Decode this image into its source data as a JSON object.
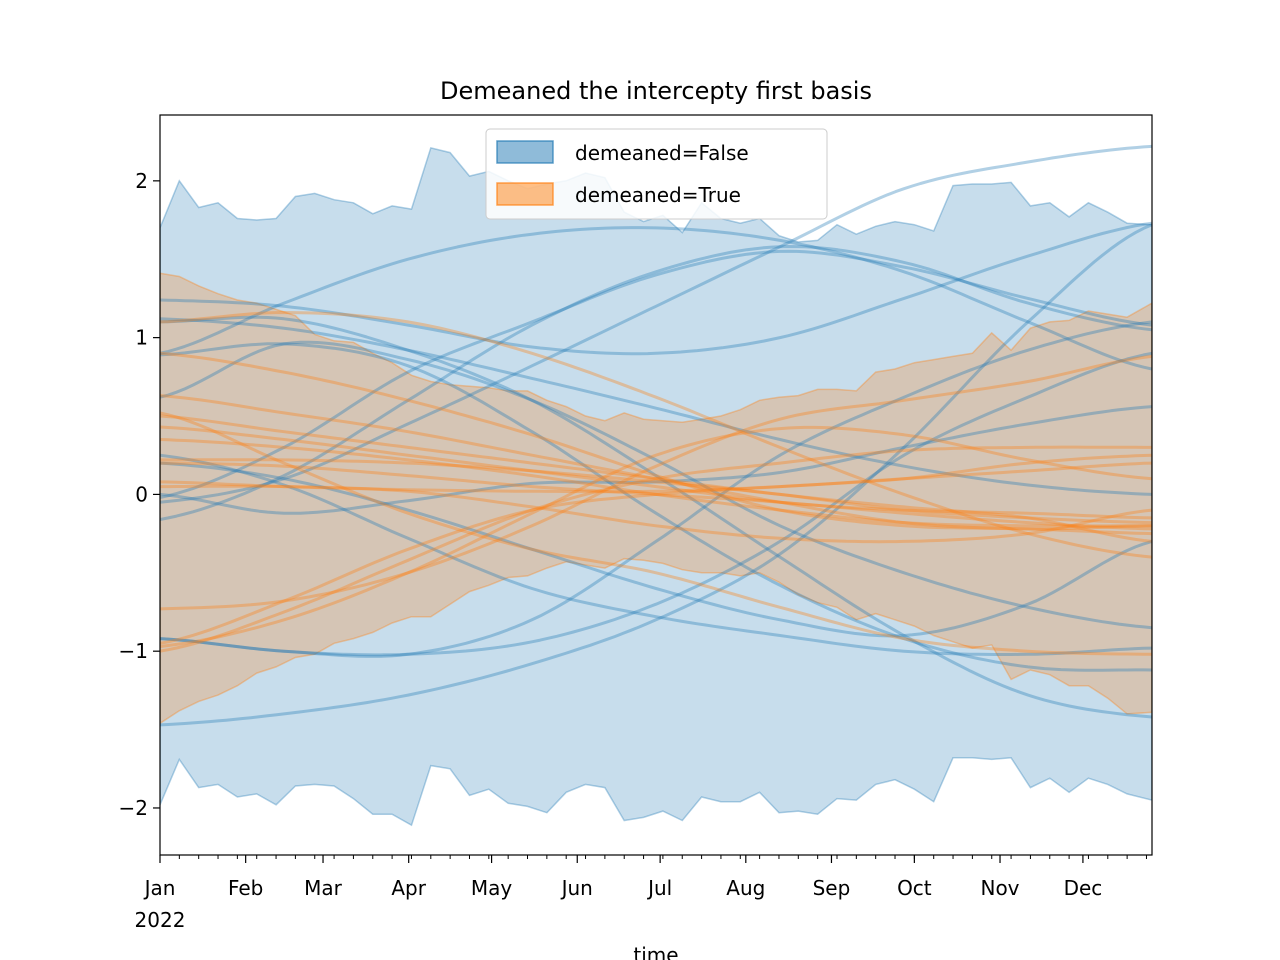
{
  "chart_data": {
    "type": "area",
    "title": "Demeaned the intercepty first basis",
    "xlabel": "time",
    "ylabel": "",
    "x_start": "2022-01-01",
    "x_end": "2022-12-26",
    "xlim": [
      "2022-01-01",
      "2022-12-26"
    ],
    "ylim": [
      -2.3,
      2.42
    ],
    "x_ticks": [
      {
        "date": "2022-01-01",
        "label": "Jan",
        "sublabel": "2022"
      },
      {
        "date": "2022-02-01",
        "label": "Feb"
      },
      {
        "date": "2022-03-01",
        "label": "Mar"
      },
      {
        "date": "2022-04-01",
        "label": "Apr"
      },
      {
        "date": "2022-05-01",
        "label": "May"
      },
      {
        "date": "2022-06-01",
        "label": "Jun"
      },
      {
        "date": "2022-07-01",
        "label": "Jul"
      },
      {
        "date": "2022-08-01",
        "label": "Aug"
      },
      {
        "date": "2022-09-01",
        "label": "Sep"
      },
      {
        "date": "2022-10-01",
        "label": "Oct"
      },
      {
        "date": "2022-11-01",
        "label": "Nov"
      },
      {
        "date": "2022-12-01",
        "label": "Dec"
      }
    ],
    "y_ticks": [
      {
        "value": 2,
        "label": "2"
      },
      {
        "value": 1,
        "label": "1"
      },
      {
        "value": 0,
        "label": "0"
      },
      {
        "value": -1,
        "label": "−1"
      },
      {
        "value": -2,
        "label": "−2"
      }
    ],
    "grid": false,
    "legend_position": "upper-center",
    "colors": {
      "false": "#1f77b4",
      "true": "#ff7f0e"
    },
    "series": [
      {
        "name": "demeaned=False",
        "color": "#1f77b4",
        "band_x": [
          "2022-01-01",
          "2022-01-08",
          "2022-01-15",
          "2022-01-22",
          "2022-01-29",
          "2022-02-05",
          "2022-02-12",
          "2022-02-19",
          "2022-02-26",
          "2022-03-05",
          "2022-03-12",
          "2022-03-19",
          "2022-03-26",
          "2022-04-02",
          "2022-04-09",
          "2022-04-16",
          "2022-04-23",
          "2022-04-30",
          "2022-05-07",
          "2022-05-14",
          "2022-05-21",
          "2022-05-28",
          "2022-06-04",
          "2022-06-11",
          "2022-06-18",
          "2022-06-25",
          "2022-07-02",
          "2022-07-09",
          "2022-07-16",
          "2022-07-23",
          "2022-07-30",
          "2022-08-06",
          "2022-08-13",
          "2022-08-20",
          "2022-08-27",
          "2022-09-03",
          "2022-09-10",
          "2022-09-17",
          "2022-09-24",
          "2022-10-01",
          "2022-10-08",
          "2022-10-15",
          "2022-10-22",
          "2022-10-29",
          "2022-11-05",
          "2022-11-12",
          "2022-11-19",
          "2022-11-26",
          "2022-12-03",
          "2022-12-10",
          "2022-12-17",
          "2022-12-26"
        ],
        "band_upper": [
          1.7,
          2.0,
          1.83,
          1.86,
          1.76,
          1.75,
          1.76,
          1.9,
          1.92,
          1.88,
          1.86,
          1.79,
          1.84,
          1.82,
          2.21,
          2.18,
          2.03,
          2.06,
          2.0,
          1.95,
          1.98,
          2.0,
          2.05,
          2.02,
          1.8,
          1.74,
          1.78,
          1.67,
          1.86,
          1.76,
          1.73,
          1.76,
          1.65,
          1.61,
          1.62,
          1.72,
          1.66,
          1.71,
          1.74,
          1.72,
          1.68,
          1.97,
          1.98,
          1.98,
          1.99,
          1.84,
          1.86,
          1.77,
          1.86,
          1.8,
          1.73,
          1.72
        ],
        "band_lower": [
          -1.98,
          -1.69,
          -1.87,
          -1.85,
          -1.93,
          -1.91,
          -1.98,
          -1.86,
          -1.85,
          -1.86,
          -1.94,
          -2.04,
          -2.04,
          -2.11,
          -1.73,
          -1.75,
          -1.92,
          -1.88,
          -1.97,
          -1.99,
          -2.03,
          -1.9,
          -1.85,
          -1.87,
          -2.08,
          -2.06,
          -2.02,
          -2.08,
          -1.93,
          -1.96,
          -1.96,
          -1.9,
          -2.03,
          -2.02,
          -2.04,
          -1.94,
          -1.95,
          -1.85,
          -1.82,
          -1.88,
          -1.96,
          -1.68,
          -1.68,
          -1.69,
          -1.68,
          -1.87,
          -1.81,
          -1.9,
          -1.81,
          -1.85,
          -1.91,
          -1.95
        ],
        "lines": [
          [
            0.9,
            1.22,
            1.5,
            1.66,
            1.7,
            1.62,
            1.42,
            1.1,
            0.8
          ],
          [
            1.24,
            1.2,
            1.08,
            0.94,
            0.9,
            1.0,
            1.25,
            1.52,
            1.73
          ],
          [
            1.12,
            1.06,
            0.92,
            0.74,
            0.55,
            0.35,
            0.18,
            0.06,
            0.0
          ],
          [
            0.89,
            0.96,
            0.82,
            0.4,
            -0.12,
            -0.58,
            -0.92,
            -1.1,
            -1.12
          ],
          [
            -0.16,
            0.12,
            0.6,
            1.08,
            1.42,
            1.58,
            1.48,
            1.22,
            1.05
          ],
          [
            -0.02,
            0.3,
            0.78,
            1.1,
            1.4,
            1.55,
            1.45,
            1.25,
            1.08
          ],
          [
            0.25,
            0.06,
            -0.28,
            -0.6,
            -0.78,
            -0.9,
            -1.0,
            -1.02,
            -0.98
          ],
          [
            -0.92,
            -1.0,
            -1.02,
            -0.94,
            -0.7,
            -0.3,
            0.25,
            0.62,
            0.9
          ],
          [
            -1.47,
            -1.4,
            -1.28,
            -1.08,
            -0.8,
            -0.38,
            0.3,
            1.1,
            1.72
          ],
          [
            0.0,
            -0.12,
            -0.04,
            0.07,
            0.08,
            0.14,
            0.3,
            0.45,
            0.56
          ],
          [
            -0.92,
            -1.0,
            -1.02,
            -0.8,
            -0.3,
            0.25,
            0.62,
            0.92,
            1.1
          ],
          [
            0.62,
            0.96,
            0.86,
            0.6,
            0.22,
            -0.2,
            -0.5,
            -0.72,
            -0.85
          ],
          [
            1.1,
            1.12,
            0.92,
            0.6,
            0.12,
            -0.4,
            -0.9,
            -1.28,
            -1.42
          ],
          [
            -0.05,
            0.1,
            0.45,
            0.82,
            1.2,
            1.58,
            1.95,
            2.12,
            2.22
          ],
          [
            0.2,
            0.1,
            -0.1,
            -0.35,
            -0.6,
            -0.8,
            -0.9,
            -0.7,
            -0.3
          ]
        ]
      },
      {
        "name": "demeaned=True",
        "color": "#ff7f0e",
        "band_x": [
          "2022-01-01",
          "2022-01-08",
          "2022-01-15",
          "2022-01-22",
          "2022-01-29",
          "2022-02-05",
          "2022-02-12",
          "2022-02-19",
          "2022-02-26",
          "2022-03-05",
          "2022-03-12",
          "2022-03-19",
          "2022-03-26",
          "2022-04-02",
          "2022-04-09",
          "2022-04-16",
          "2022-04-23",
          "2022-04-30",
          "2022-05-07",
          "2022-05-14",
          "2022-05-21",
          "2022-05-28",
          "2022-06-04",
          "2022-06-11",
          "2022-06-18",
          "2022-06-25",
          "2022-07-02",
          "2022-07-09",
          "2022-07-16",
          "2022-07-23",
          "2022-07-30",
          "2022-08-06",
          "2022-08-13",
          "2022-08-20",
          "2022-08-27",
          "2022-09-03",
          "2022-09-10",
          "2022-09-17",
          "2022-09-24",
          "2022-10-01",
          "2022-10-08",
          "2022-10-15",
          "2022-10-22",
          "2022-10-29",
          "2022-11-05",
          "2022-11-12",
          "2022-11-19",
          "2022-11-26",
          "2022-12-03",
          "2022-12-10",
          "2022-12-17",
          "2022-12-26"
        ],
        "band_upper": [
          1.41,
          1.39,
          1.33,
          1.28,
          1.24,
          1.22,
          1.18,
          1.14,
          1.02,
          0.98,
          0.97,
          0.9,
          0.84,
          0.76,
          0.72,
          0.7,
          0.69,
          0.68,
          0.66,
          0.66,
          0.6,
          0.56,
          0.5,
          0.47,
          0.52,
          0.48,
          0.47,
          0.46,
          0.48,
          0.5,
          0.54,
          0.6,
          0.62,
          0.63,
          0.67,
          0.67,
          0.66,
          0.78,
          0.8,
          0.84,
          0.86,
          0.88,
          0.9,
          1.03,
          0.92,
          1.06,
          1.1,
          1.11,
          1.17,
          1.15,
          1.13,
          1.22
        ],
        "band_lower": [
          -1.46,
          -1.38,
          -1.32,
          -1.28,
          -1.22,
          -1.14,
          -1.1,
          -1.04,
          -1.02,
          -0.95,
          -0.92,
          -0.88,
          -0.82,
          -0.78,
          -0.78,
          -0.7,
          -0.62,
          -0.58,
          -0.53,
          -0.52,
          -0.47,
          -0.43,
          -0.45,
          -0.47,
          -0.41,
          -0.42,
          -0.44,
          -0.48,
          -0.5,
          -0.5,
          -0.52,
          -0.5,
          -0.56,
          -0.64,
          -0.69,
          -0.72,
          -0.8,
          -0.76,
          -0.8,
          -0.84,
          -0.9,
          -0.94,
          -0.98,
          -0.96,
          -1.18,
          -1.12,
          -1.15,
          -1.22,
          -1.22,
          -1.3,
          -1.4,
          -1.39
        ],
        "lines": [
          [
            1.1,
            1.16,
            1.1,
            0.9,
            0.62,
            0.3,
            0.0,
            -0.25,
            -0.4
          ],
          [
            0.9,
            0.78,
            0.6,
            0.38,
            0.12,
            -0.1,
            -0.2,
            -0.22,
            -0.25
          ],
          [
            0.63,
            0.52,
            0.4,
            0.25,
            0.1,
            -0.05,
            -0.18,
            -0.22,
            -0.2
          ],
          [
            0.5,
            0.4,
            0.3,
            0.2,
            0.1,
            0.0,
            -0.08,
            -0.15,
            -0.3
          ],
          [
            0.43,
            0.35,
            0.25,
            0.15,
            0.05,
            -0.05,
            -0.1,
            -0.12,
            -0.15
          ],
          [
            0.35,
            0.3,
            0.22,
            0.12,
            0.0,
            -0.1,
            -0.18,
            -0.2,
            -0.2
          ],
          [
            0.22,
            0.22,
            0.2,
            0.15,
            0.08,
            0.0,
            -0.1,
            -0.15,
            -0.18
          ],
          [
            0.2,
            0.18,
            0.12,
            0.05,
            0.0,
            -0.05,
            -0.12,
            -0.18,
            -0.22
          ],
          [
            0.08,
            0.05,
            0.03,
            0.02,
            0.02,
            0.05,
            0.1,
            0.15,
            0.2
          ],
          [
            0.52,
            0.2,
            -0.12,
            -0.35,
            -0.5,
            -0.72,
            -0.92,
            -1.0,
            -1.02
          ],
          [
            -0.73,
            -0.68,
            -0.5,
            -0.2,
            0.18,
            0.48,
            0.6,
            0.72,
            0.88
          ],
          [
            -0.97,
            -0.8,
            -0.5,
            -0.12,
            0.25,
            0.42,
            0.38,
            0.22,
            0.1
          ],
          [
            -1.0,
            -0.75,
            -0.42,
            -0.1,
            0.1,
            0.2,
            0.28,
            0.3,
            0.3
          ],
          [
            -0.95,
            -0.68,
            -0.35,
            -0.1,
            0.0,
            0.05,
            0.1,
            0.2,
            0.25
          ],
          [
            0.05,
            0.05,
            0.02,
            -0.08,
            -0.2,
            -0.28,
            -0.3,
            -0.25,
            -0.1
          ]
        ]
      }
    ]
  }
}
